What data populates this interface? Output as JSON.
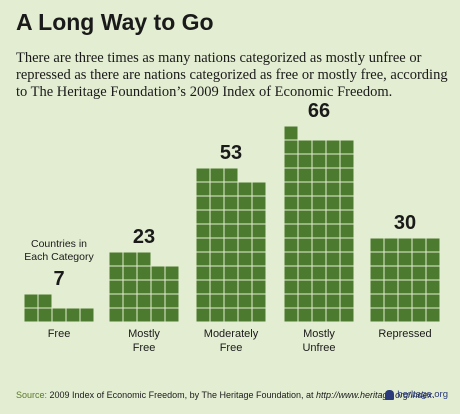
{
  "header": {
    "title": "A Long Way to Go",
    "subtitle": "There are three times as many nations categorized as mostly unfree or repressed as there are nations categorized as free or mostly free, according to The Heritage Foundation’s 2009 Index of Economic Freedom."
  },
  "chart_data": {
    "type": "bar",
    "categories": [
      "Free",
      "Mostly Free",
      "Moderately Free",
      "Mostly Unfree",
      "Repressed"
    ],
    "category_lines": [
      [
        "Free"
      ],
      [
        "Mostly",
        "Free"
      ],
      [
        "Moderately",
        "Free"
      ],
      [
        "Mostly",
        "Unfree"
      ],
      [
        "Repressed"
      ]
    ],
    "values": [
      7,
      23,
      53,
      66,
      30
    ],
    "annotation": [
      "Countries in",
      "Each Category"
    ],
    "units_per_row": 5,
    "bar_color": "#4c7a2e",
    "cell_border_color": "#e3edd2"
  },
  "footer": {
    "source_label": "Source:",
    "source_text": " 2009 Index of Economic Freedom, by The Heritage Foundation, at ",
    "source_url": "http://www.heritage.org/index",
    "source_end": "."
  },
  "logo": {
    "text": "heritage.org",
    "color": "#2a3a7a"
  },
  "colors": {
    "background": "#e3edd2",
    "bar": "#4c7a2e",
    "accent": "#5b7a2a"
  }
}
